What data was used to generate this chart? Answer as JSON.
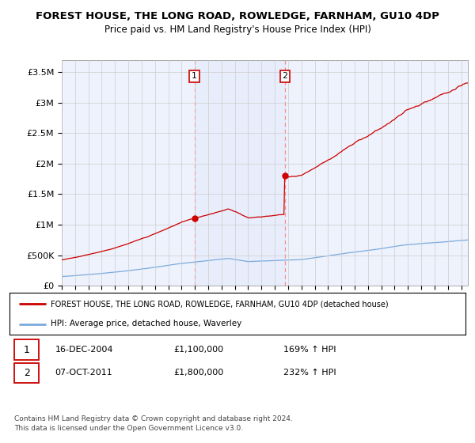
{
  "title": "FOREST HOUSE, THE LONG ROAD, ROWLEDGE, FARNHAM, GU10 4DP",
  "subtitle": "Price paid vs. HM Land Registry's House Price Index (HPI)",
  "legend_line1": "FOREST HOUSE, THE LONG ROAD, ROWLEDGE, FARNHAM, GU10 4DP (detached house)",
  "legend_line2": "HPI: Average price, detached house, Waverley",
  "sale1_date": "16-DEC-2004",
  "sale1_price": "£1,100,000",
  "sale1_hpi": "169% ↑ HPI",
  "sale2_date": "07-OCT-2011",
  "sale2_price": "£1,800,000",
  "sale2_hpi": "232% ↑ HPI",
  "sale1_year": 2004.96,
  "sale1_value": 1100000,
  "sale2_year": 2011.77,
  "sale2_value": 1800000,
  "ylim_min": 0,
  "ylim_max": 3700000,
  "hpi_color": "#7aaadd",
  "price_color": "#cc0000",
  "vline_color": "#ff8888",
  "background_color": "#ffffff",
  "plot_bg_color": "#eef2fc",
  "grid_color": "#cccccc",
  "footnote": "Contains HM Land Registry data © Crown copyright and database right 2024.\nThis data is licensed under the Open Government Licence v3.0."
}
